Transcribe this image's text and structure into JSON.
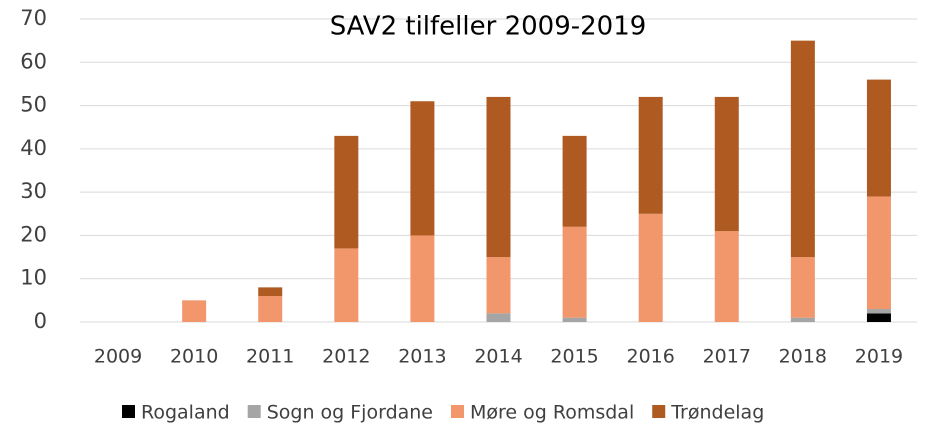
{
  "chart_data": {
    "type": "stacked_bar",
    "title": "SAV2 tilfeller 2009-2019",
    "categories": [
      "2009",
      "2010",
      "2011",
      "2012",
      "2013",
      "2014",
      "2015",
      "2016",
      "2017",
      "2018",
      "2019"
    ],
    "series": [
      {
        "name": "Rogaland",
        "color": "#000000",
        "values": [
          0,
          0,
          0,
          0,
          0,
          0,
          0,
          0,
          0,
          0,
          2
        ]
      },
      {
        "name": "Sogn og Fjordane",
        "color": "#a5a5a5",
        "values": [
          0,
          0,
          0,
          0,
          0,
          2,
          1,
          0,
          0,
          1,
          1
        ]
      },
      {
        "name": "Møre og Romsdal",
        "color": "#f1976b",
        "values": [
          0,
          5,
          6,
          17,
          20,
          13,
          21,
          25,
          21,
          14,
          26
        ]
      },
      {
        "name": "Trøndelag",
        "color": "#ae5a21",
        "values": [
          0,
          0,
          2,
          26,
          31,
          37,
          21,
          27,
          31,
          50,
          27
        ]
      }
    ],
    "ylim": [
      0,
      70
    ],
    "yticks": [
      0,
      10,
      20,
      30,
      40,
      50,
      60,
      70
    ],
    "grid": true,
    "legend": "bottom"
  }
}
